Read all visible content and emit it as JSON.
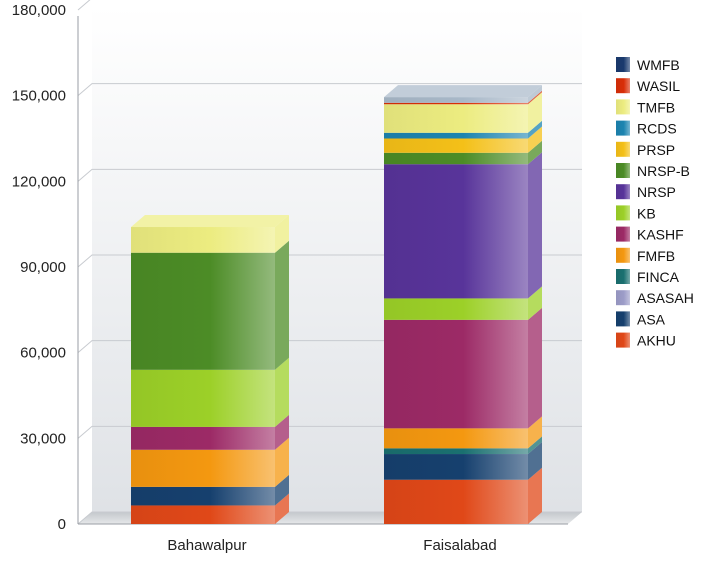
{
  "chart_data": {
    "type": "bar",
    "stacked": true,
    "three_d": true,
    "title": "",
    "xlabel": "",
    "ylabel": "",
    "ylim": [
      0,
      180000
    ],
    "yticks": [
      0,
      30000,
      60000,
      90000,
      120000,
      150000,
      180000
    ],
    "ytick_labels": [
      "0",
      "30,000",
      "60,000",
      "90,000",
      "120,000",
      "150,000",
      "180,000"
    ],
    "grid": true,
    "legend_position": "right",
    "categories": [
      "Bahawalpur",
      "Faisalabad"
    ],
    "series": [
      {
        "name": "AKHU",
        "color": "#e04818",
        "values": [
          6500,
          15500
        ]
      },
      {
        "name": "ASA",
        "color": "#16406e",
        "values": [
          6500,
          9000
        ]
      },
      {
        "name": "ASASAH",
        "color": "#9c9cc8",
        "values": [
          0,
          0
        ]
      },
      {
        "name": "FINCA",
        "color": "#1a7070",
        "values": [
          0,
          2000
        ]
      },
      {
        "name": "FMFB",
        "color": "#f49810",
        "values": [
          13000,
          7000
        ]
      },
      {
        "name": "KASHF",
        "color": "#9c2a66",
        "values": [
          8000,
          38000
        ]
      },
      {
        "name": "KB",
        "color": "#9cd028",
        "values": [
          20000,
          7500
        ]
      },
      {
        "name": "NRSP",
        "color": "#58349a",
        "values": [
          0,
          47000
        ]
      },
      {
        "name": "NRSP-B",
        "color": "#4c8c26",
        "values": [
          41000,
          4000
        ]
      },
      {
        "name": "PRSP",
        "color": "#f4c018",
        "values": [
          0,
          5000
        ]
      },
      {
        "name": "RCDS",
        "color": "#1c84b0",
        "values": [
          0,
          2000
        ]
      },
      {
        "name": "TMFB",
        "color": "#ecec80",
        "values": [
          9000,
          10000
        ]
      },
      {
        "name": "WASIL",
        "color": "#d82e08",
        "values": [
          0,
          500
        ]
      },
      {
        "name": "WMFB",
        "color": "#1a3a6e",
        "values": [
          0,
          0
        ]
      }
    ],
    "legend_order": [
      "WMFB",
      "WASIL",
      "TMFB",
      "RCDS",
      "PRSP",
      "NRSP-B",
      "NRSP",
      "KB",
      "KASHF",
      "FMFB",
      "FINCA",
      "ASASAH",
      "ASA",
      "AKHU"
    ],
    "background_column": {
      "color": "#a8b8c8",
      "values": [
        0,
        2000
      ]
    }
  }
}
